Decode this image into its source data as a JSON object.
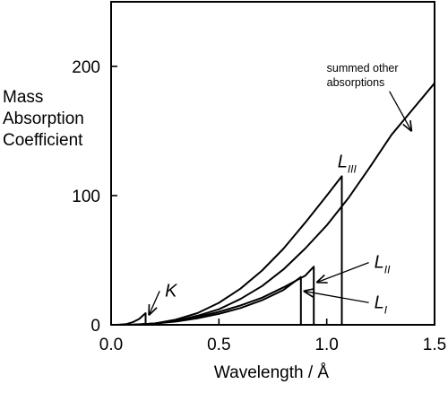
{
  "chart_data": {
    "type": "line",
    "title": "",
    "xlabel": "Wavelength / Å",
    "ylabel": [
      "Mass",
      "Absorption",
      "Coefficient"
    ],
    "xlim": [
      0.0,
      1.5
    ],
    "ylim": [
      0,
      250
    ],
    "x_ticks": [
      0.0,
      0.5,
      1.0,
      1.5
    ],
    "x_tick_labels": [
      "0.0",
      "0.5",
      "1.0",
      "1.5"
    ],
    "y_ticks": [
      0,
      100,
      200
    ],
    "y_tick_labels": [
      "0",
      "100",
      "200"
    ],
    "grid": false,
    "legend": "none",
    "series": [
      {
        "id": "other",
        "x": [
          0.0,
          0.1,
          0.2,
          0.3,
          0.4,
          0.5,
          0.6,
          0.7,
          0.8,
          0.9,
          1.0,
          1.1,
          1.2,
          1.3,
          1.4,
          1.5
        ],
        "y": [
          0,
          0.2,
          1,
          3,
          7,
          12,
          20,
          30,
          43,
          59,
          77,
          98,
          122,
          147,
          167,
          187
        ]
      },
      {
        "id": "K",
        "x": [
          0.03,
          0.07,
          0.1,
          0.13,
          0.16,
          0.16
        ],
        "y": [
          0,
          0.5,
          2,
          4.5,
          9,
          0
        ]
      },
      {
        "id": "LIII",
        "x": [
          0.1,
          0.2,
          0.3,
          0.4,
          0.5,
          0.6,
          0.7,
          0.8,
          0.9,
          1.0,
          1.07,
          1.07
        ],
        "y": [
          0,
          1,
          4,
          9,
          17,
          28,
          42,
          59,
          79,
          100,
          115,
          0
        ]
      },
      {
        "id": "LII",
        "x": [
          0.1,
          0.2,
          0.3,
          0.4,
          0.5,
          0.6,
          0.7,
          0.8,
          0.9,
          0.94,
          0.94
        ],
        "y": [
          0,
          1,
          3,
          6,
          10,
          15,
          21,
          29,
          38,
          45,
          0
        ]
      },
      {
        "id": "LI",
        "x": [
          0.1,
          0.2,
          0.3,
          0.4,
          0.5,
          0.6,
          0.7,
          0.8,
          0.88,
          0.88
        ],
        "y": [
          0,
          1,
          2.5,
          5,
          8.5,
          13,
          19,
          27,
          37,
          0
        ]
      }
    ],
    "annotations": [
      {
        "id": "summed",
        "lines": [
          "summed other",
          "absorptions"
        ],
        "point_to": [
          1.4,
          149
        ],
        "text_at": [
          1.0,
          196
        ]
      },
      {
        "id": "K",
        "label": "K",
        "sub": "",
        "point_to": [
          0.16,
          8
        ],
        "text_at": [
          0.25,
          22
        ]
      },
      {
        "id": "LIII",
        "label": "L",
        "sub": "III",
        "point_to": null,
        "text_at": [
          1.05,
          122
        ]
      },
      {
        "id": "LII",
        "label": "L",
        "sub": "II",
        "point_to": [
          0.94,
          33
        ],
        "text_at": [
          1.22,
          44
        ]
      },
      {
        "id": "LI",
        "label": "L",
        "sub": "I",
        "point_to": [
          0.88,
          26
        ],
        "text_at": [
          1.22,
          13
        ]
      }
    ]
  }
}
